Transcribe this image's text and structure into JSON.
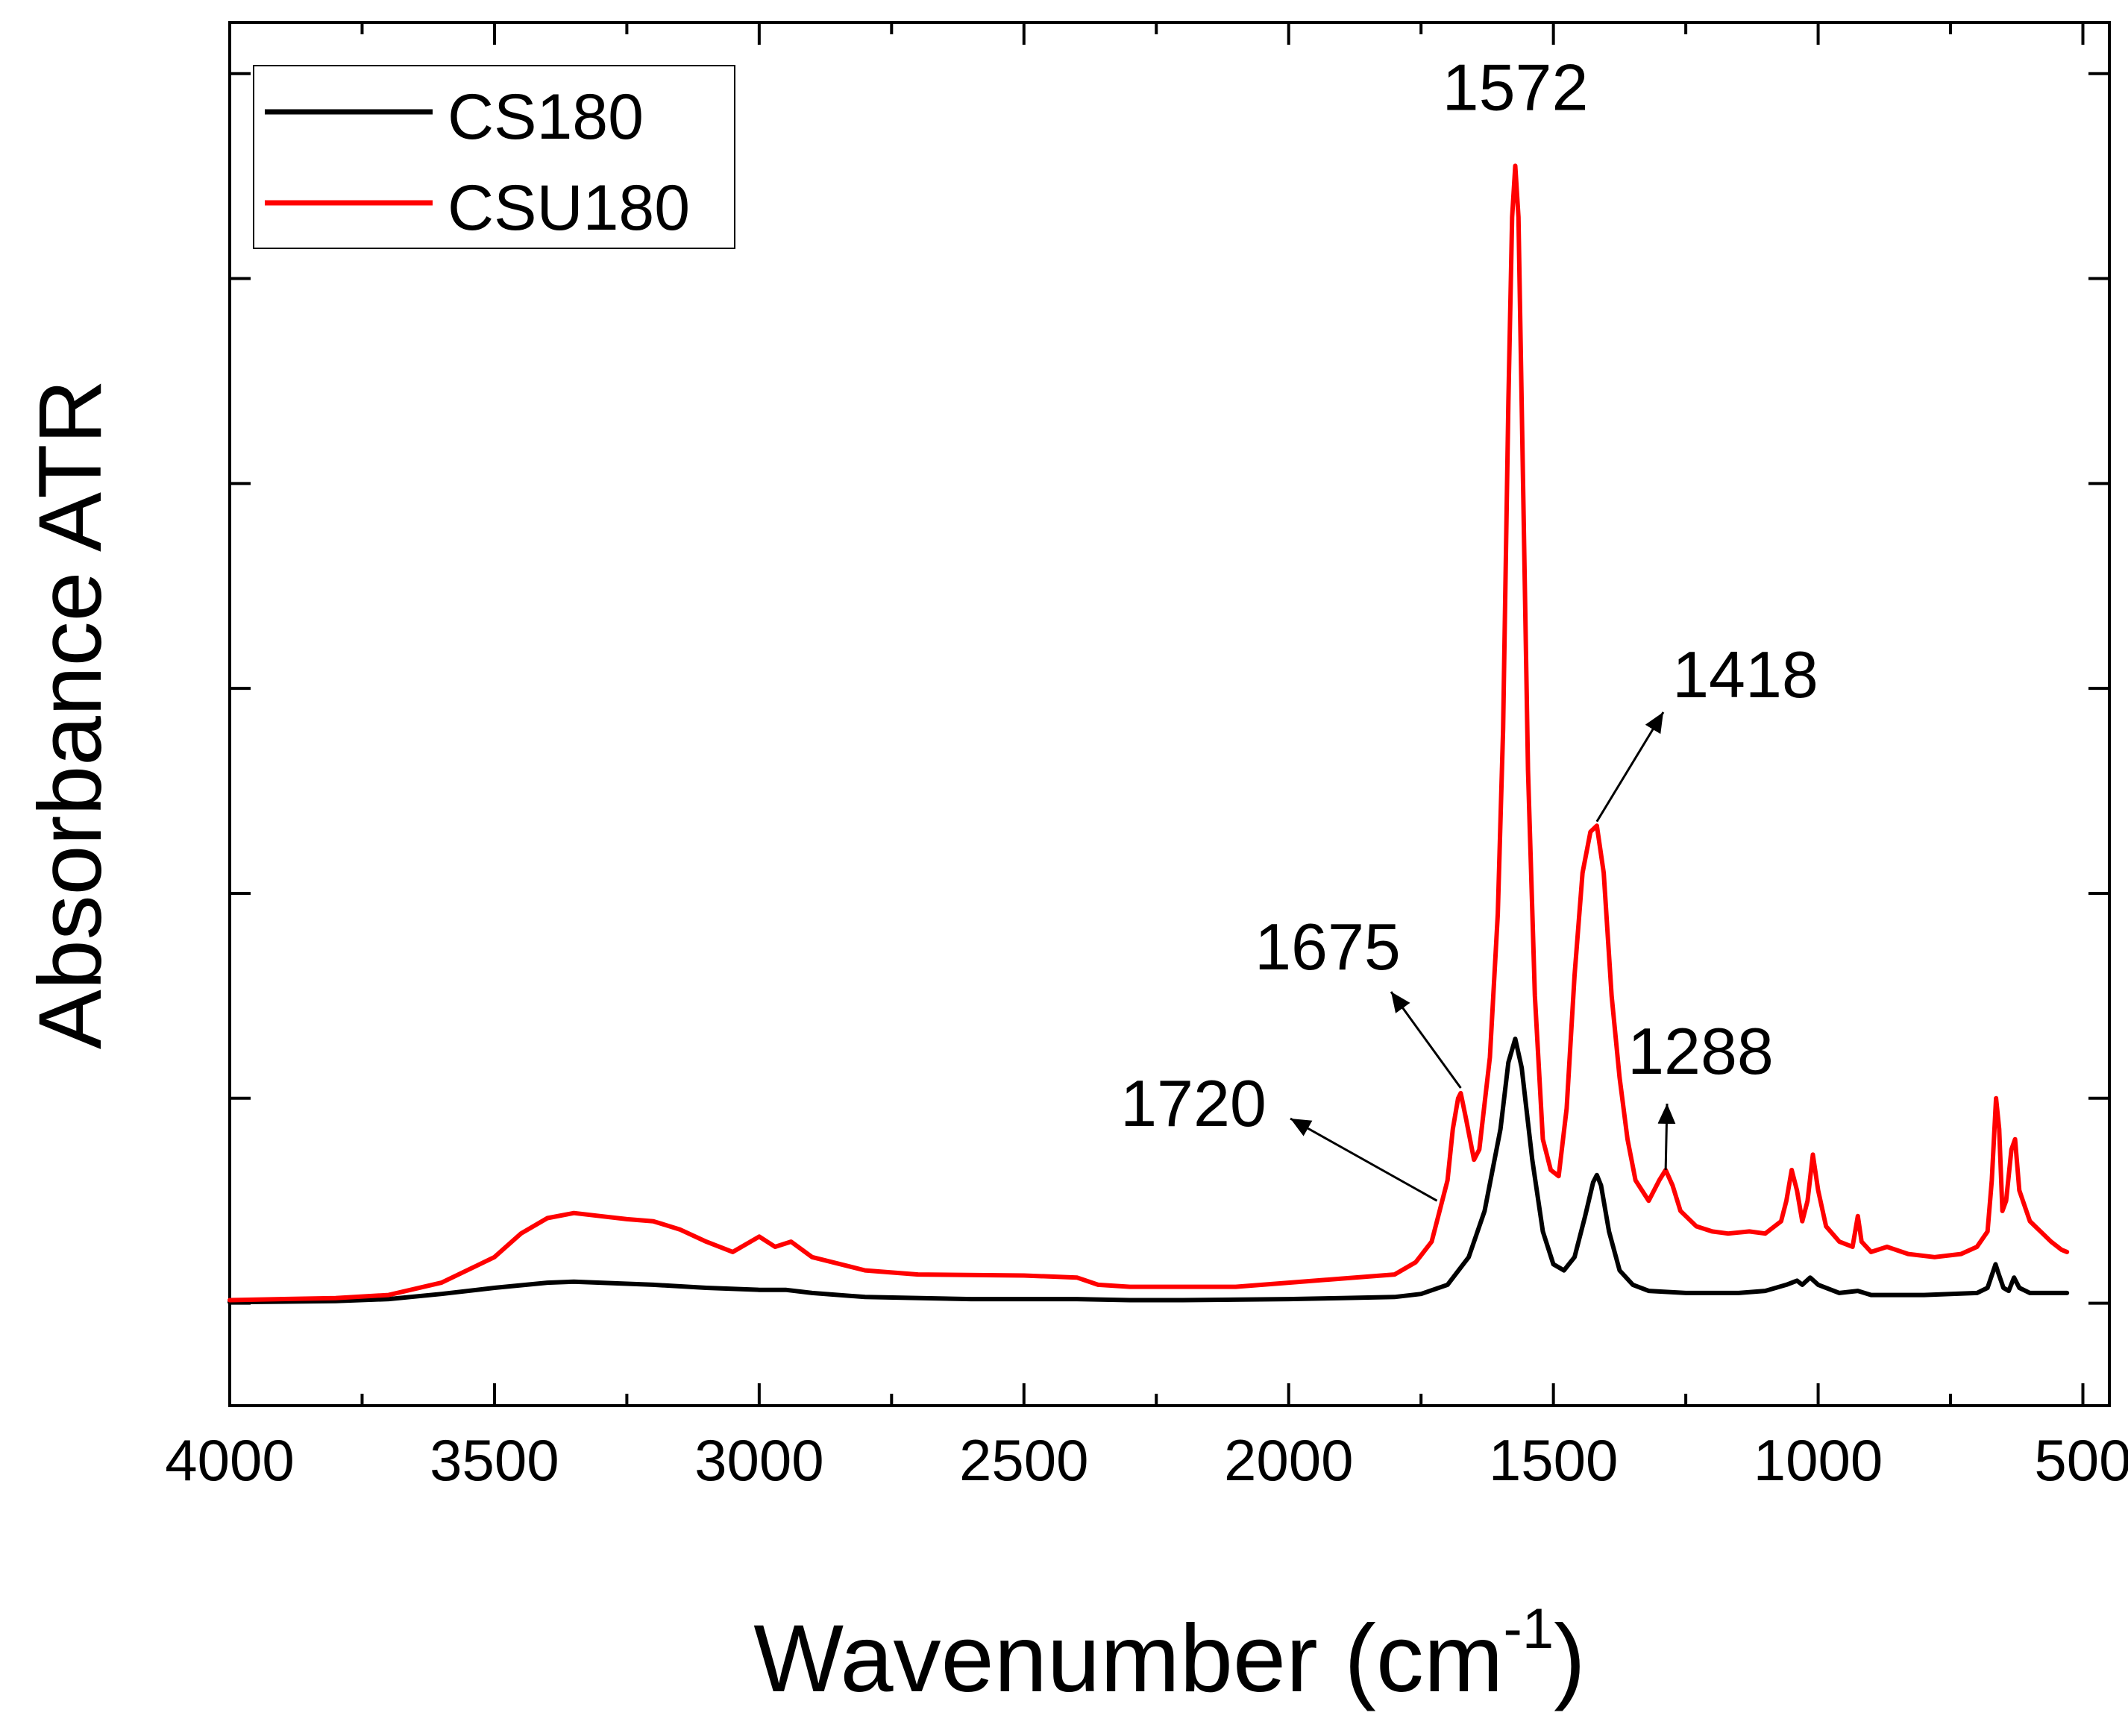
{
  "chart_data": {
    "type": "line",
    "title": "",
    "xlabel": "Wavenumber (cm",
    "xlabel_sup": "-1",
    "xlabel_close": ")",
    "ylabel": "Absorbance ATR",
    "xlim": [
      4000,
      450
    ],
    "x_reversed": true,
    "ylim": [
      -0.1,
      1.25
    ],
    "y_ticks_unlabeled": [
      0,
      0.2,
      0.4,
      0.6,
      0.8,
      1.0,
      1.2
    ],
    "x_ticks": [
      {
        "value": 4000,
        "label": "4000"
      },
      {
        "value": 3500,
        "label": "3500"
      },
      {
        "value": 3000,
        "label": "3000"
      },
      {
        "value": 2500,
        "label": "2500"
      },
      {
        "value": 2000,
        "label": "2000"
      },
      {
        "value": 1500,
        "label": "1500"
      },
      {
        "value": 1000,
        "label": "1000"
      },
      {
        "value": 500,
        "label": "500"
      }
    ],
    "legend_position": "top-left",
    "series": [
      {
        "name": "CS180",
        "color": "#000000",
        "points": [
          [
            4000,
            0.001
          ],
          [
            3800,
            0.002
          ],
          [
            3700,
            0.004
          ],
          [
            3600,
            0.009
          ],
          [
            3500,
            0.015
          ],
          [
            3400,
            0.02
          ],
          [
            3350,
            0.021
          ],
          [
            3300,
            0.02
          ],
          [
            3200,
            0.018
          ],
          [
            3100,
            0.015
          ],
          [
            3000,
            0.013
          ],
          [
            2950,
            0.013
          ],
          [
            2900,
            0.01
          ],
          [
            2800,
            0.006
          ],
          [
            2600,
            0.004
          ],
          [
            2400,
            0.004
          ],
          [
            2300,
            0.003
          ],
          [
            2200,
            0.003
          ],
          [
            2000,
            0.004
          ],
          [
            1900,
            0.005
          ],
          [
            1800,
            0.006
          ],
          [
            1750,
            0.009
          ],
          [
            1700,
            0.018
          ],
          [
            1660,
            0.045
          ],
          [
            1630,
            0.09
          ],
          [
            1600,
            0.17
          ],
          [
            1585,
            0.235
          ],
          [
            1572,
            0.258
          ],
          [
            1560,
            0.23
          ],
          [
            1540,
            0.14
          ],
          [
            1520,
            0.07
          ],
          [
            1500,
            0.038
          ],
          [
            1480,
            0.032
          ],
          [
            1460,
            0.045
          ],
          [
            1440,
            0.085
          ],
          [
            1425,
            0.118
          ],
          [
            1418,
            0.125
          ],
          [
            1410,
            0.115
          ],
          [
            1395,
            0.07
          ],
          [
            1375,
            0.032
          ],
          [
            1350,
            0.018
          ],
          [
            1320,
            0.012
          ],
          [
            1250,
            0.01
          ],
          [
            1150,
            0.01
          ],
          [
            1100,
            0.012
          ],
          [
            1060,
            0.018
          ],
          [
            1040,
            0.022
          ],
          [
            1030,
            0.018
          ],
          [
            1015,
            0.025
          ],
          [
            1000,
            0.018
          ],
          [
            960,
            0.01
          ],
          [
            925,
            0.012
          ],
          [
            900,
            0.008
          ],
          [
            800,
            0.008
          ],
          [
            700,
            0.01
          ],
          [
            680,
            0.015
          ],
          [
            665,
            0.038
          ],
          [
            660,
            0.03
          ],
          [
            650,
            0.015
          ],
          [
            640,
            0.012
          ],
          [
            630,
            0.025
          ],
          [
            620,
            0.015
          ],
          [
            600,
            0.01
          ],
          [
            530,
            0.01
          ]
        ]
      },
      {
        "name": "CSU180",
        "color": "#ff0000",
        "points": [
          [
            4000,
            0.003
          ],
          [
            3800,
            0.005
          ],
          [
            3700,
            0.008
          ],
          [
            3600,
            0.02
          ],
          [
            3500,
            0.045
          ],
          [
            3450,
            0.068
          ],
          [
            3400,
            0.083
          ],
          [
            3350,
            0.088
          ],
          [
            3300,
            0.085
          ],
          [
            3250,
            0.082
          ],
          [
            3200,
            0.08
          ],
          [
            3150,
            0.072
          ],
          [
            3100,
            0.06
          ],
          [
            3050,
            0.05
          ],
          [
            3000,
            0.065
          ],
          [
            2970,
            0.055
          ],
          [
            2940,
            0.06
          ],
          [
            2900,
            0.045
          ],
          [
            2800,
            0.032
          ],
          [
            2700,
            0.028
          ],
          [
            2500,
            0.027
          ],
          [
            2400,
            0.025
          ],
          [
            2360,
            0.018
          ],
          [
            2300,
            0.016
          ],
          [
            2100,
            0.016
          ],
          [
            2000,
            0.02
          ],
          [
            1900,
            0.024
          ],
          [
            1800,
            0.028
          ],
          [
            1760,
            0.04
          ],
          [
            1730,
            0.06
          ],
          [
            1720,
            0.08
          ],
          [
            1710,
            0.1
          ],
          [
            1700,
            0.12
          ],
          [
            1690,
            0.17
          ],
          [
            1680,
            0.2
          ],
          [
            1675,
            0.205
          ],
          [
            1665,
            0.18
          ],
          [
            1650,
            0.14
          ],
          [
            1640,
            0.15
          ],
          [
            1620,
            0.24
          ],
          [
            1605,
            0.38
          ],
          [
            1595,
            0.56
          ],
          [
            1585,
            0.88
          ],
          [
            1578,
            1.06
          ],
          [
            1572,
            1.11
          ],
          [
            1566,
            1.06
          ],
          [
            1558,
            0.82
          ],
          [
            1548,
            0.52
          ],
          [
            1535,
            0.3
          ],
          [
            1520,
            0.16
          ],
          [
            1505,
            0.13
          ],
          [
            1490,
            0.124
          ],
          [
            1475,
            0.19
          ],
          [
            1460,
            0.32
          ],
          [
            1445,
            0.42
          ],
          [
            1430,
            0.46
          ],
          [
            1418,
            0.466
          ],
          [
            1405,
            0.42
          ],
          [
            1390,
            0.3
          ],
          [
            1375,
            0.22
          ],
          [
            1360,
            0.16
          ],
          [
            1345,
            0.12
          ],
          [
            1320,
            0.1
          ],
          [
            1300,
            0.12
          ],
          [
            1288,
            0.13
          ],
          [
            1275,
            0.115
          ],
          [
            1260,
            0.09
          ],
          [
            1230,
            0.075
          ],
          [
            1200,
            0.07
          ],
          [
            1170,
            0.068
          ],
          [
            1130,
            0.07
          ],
          [
            1100,
            0.068
          ],
          [
            1070,
            0.08
          ],
          [
            1060,
            0.1
          ],
          [
            1050,
            0.13
          ],
          [
            1040,
            0.11
          ],
          [
            1030,
            0.08
          ],
          [
            1020,
            0.1
          ],
          [
            1010,
            0.145
          ],
          [
            1000,
            0.11
          ],
          [
            985,
            0.075
          ],
          [
            960,
            0.06
          ],
          [
            935,
            0.055
          ],
          [
            925,
            0.085
          ],
          [
            918,
            0.06
          ],
          [
            900,
            0.05
          ],
          [
            870,
            0.055
          ],
          [
            830,
            0.048
          ],
          [
            780,
            0.045
          ],
          [
            730,
            0.048
          ],
          [
            700,
            0.055
          ],
          [
            680,
            0.07
          ],
          [
            672,
            0.12
          ],
          [
            664,
            0.2
          ],
          [
            658,
            0.17
          ],
          [
            652,
            0.09
          ],
          [
            645,
            0.1
          ],
          [
            635,
            0.15
          ],
          [
            628,
            0.16
          ],
          [
            620,
            0.11
          ],
          [
            600,
            0.08
          ],
          [
            580,
            0.07
          ],
          [
            560,
            0.06
          ],
          [
            540,
            0.052
          ],
          [
            530,
            0.05
          ]
        ]
      }
    ],
    "annotations": [
      {
        "label": "1572",
        "peak": 1572,
        "arrow": false
      },
      {
        "label": "1418",
        "peak": 1418,
        "arrow": true
      },
      {
        "label": "1675",
        "peak": 1675,
        "arrow": true
      },
      {
        "label": "1720",
        "peak": 1720,
        "arrow": true
      },
      {
        "label": "1288",
        "peak": 1288,
        "arrow": true
      }
    ]
  }
}
